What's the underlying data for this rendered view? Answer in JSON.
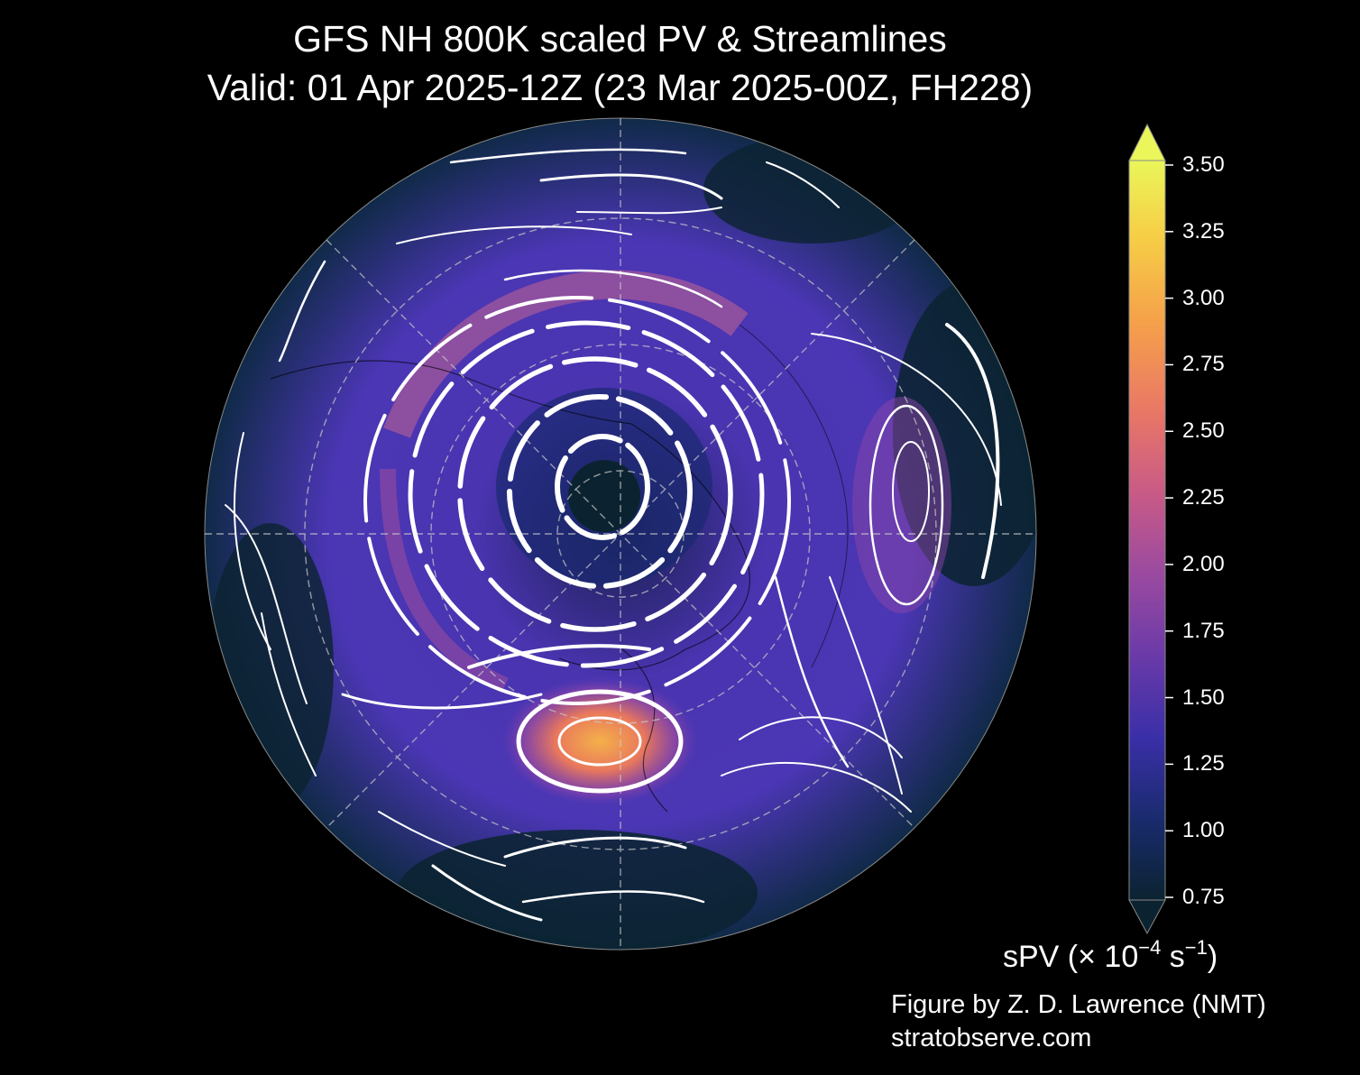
{
  "title_line1": "GFS NH 800K scaled PV & Streamlines",
  "title_line2": "Valid: 01 Apr 2025-12Z  (23 Mar 2025-00Z, FH228)",
  "colorbar": {
    "label_main": "sPV (× 10",
    "label_exp1": "−4",
    "label_mid": " s",
    "label_exp2": "−1",
    "label_end": ")",
    "min": 0.75,
    "max": 3.5,
    "extend": "both",
    "ticks": [
      "3.50",
      "3.25",
      "3.00",
      "2.75",
      "2.50",
      "2.25",
      "2.00",
      "1.75",
      "1.50",
      "1.25",
      "1.00",
      "0.75"
    ],
    "colormap": [
      "#0b2330",
      "#1a2b6e",
      "#3a2fa8",
      "#6a3aa8",
      "#9a4aa0",
      "#c85a86",
      "#e97766",
      "#f5a04a",
      "#f6cf46",
      "#eaf65a"
    ]
  },
  "credit_line1": "Figure by Z. D. Lawrence (NMT)",
  "credit_line2": "stratobserve.com",
  "colors": {
    "background": "#000000",
    "map_low": "#0b2330",
    "streamline": "#ffffff",
    "gridline": "#cccccc"
  }
}
